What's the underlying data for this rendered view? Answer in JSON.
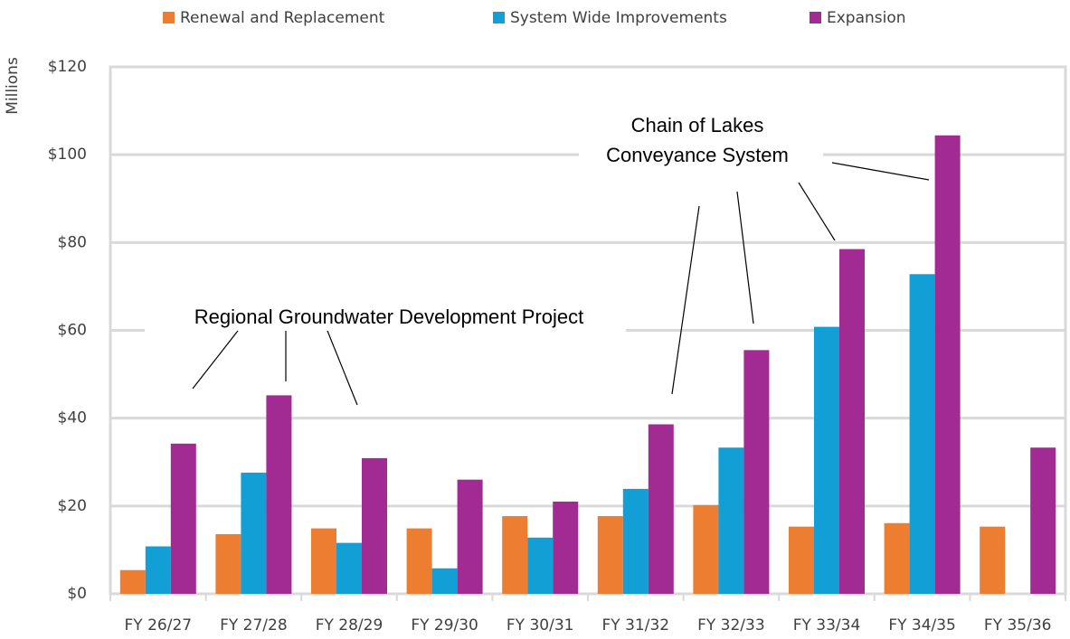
{
  "chart_data": {
    "type": "bar",
    "y_label": "Millions",
    "categories": [
      "FY 26/27",
      "FY 27/28",
      "FY 28/29",
      "FY 29/30",
      "FY 30/31",
      "FY 31/32",
      "FY 32/33",
      "FY 33/34",
      "FY 34/35",
      "FY 35/36"
    ],
    "series": [
      {
        "name": "Renewal and Replacement",
        "color": "#ed7d31",
        "values": [
          5.4,
          13.6,
          14.9,
          14.9,
          17.7,
          17.7,
          20.2,
          15.3,
          16.1,
          15.3
        ]
      },
      {
        "name": "System Wide Improvements",
        "color": "#119fd6",
        "values": [
          10.8,
          27.6,
          11.6,
          5.8,
          12.8,
          23.9,
          33.3,
          60.8,
          72.8,
          null
        ]
      },
      {
        "name": "Expansion",
        "color": "#a12b92",
        "values": [
          34.2,
          45.2,
          30.9,
          26.0,
          21.0,
          38.6,
          55.5,
          78.5,
          104.4,
          33.3
        ]
      }
    ],
    "ylim": [
      0,
      120
    ],
    "yticks": [
      {
        "value": 0,
        "label": "$0"
      },
      {
        "value": 20,
        "label": "$20"
      },
      {
        "value": 40,
        "label": "$40"
      },
      {
        "value": 60,
        "label": "$60"
      },
      {
        "value": 80,
        "label": "$80"
      },
      {
        "value": 100,
        "label": "$100"
      },
      {
        "value": 120,
        "label": "$120"
      }
    ],
    "grid": true,
    "legend": "top",
    "annotations": [
      {
        "lines": [
          "Regional Groundwater Development Project"
        ]
      },
      {
        "lines": [
          "Chain of Lakes",
          "Conveyance System"
        ]
      }
    ]
  }
}
